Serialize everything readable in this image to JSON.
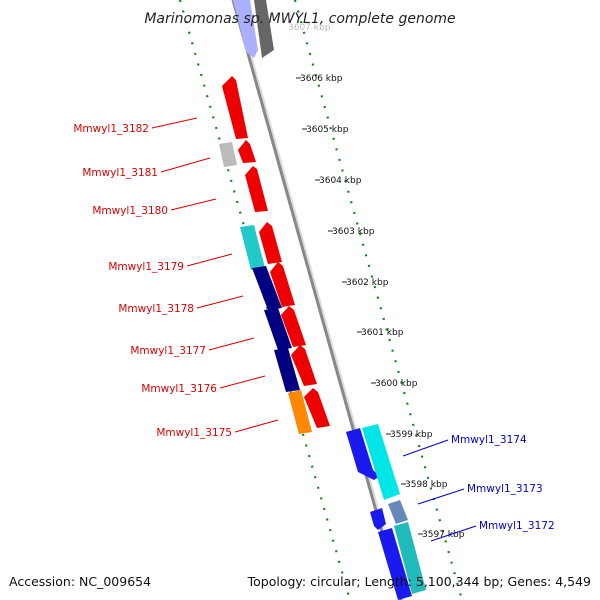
{
  "title": "Marinomonas sp. MWYL1, complete genome",
  "footer": {
    "accession": "Accession: NC_009654",
    "topology": "Topology: circular; Length: 5,100,344 bp; Genes: 4,549"
  },
  "ticks": [
    "3606 kbp",
    "3605 kbp",
    "3604 kbp",
    "3603 kbp",
    "3602 kbp",
    "3601 kbp",
    "3600 kbp",
    "3599 kbp",
    "3598 kbp",
    "3597 kbp"
  ],
  "genes_left": [
    "Mmwyl1_3182",
    "Mmwyl1_3181",
    "Mmwyl1_3180",
    "Mmwyl1_3179",
    "Mmwyl1_3178",
    "Mmwyl1_3177",
    "Mmwyl1_3176",
    "Mmwyl1_3175"
  ],
  "genes_right": [
    "Mmwyl1_3174",
    "Mmwyl1_3173",
    "Mmwyl1_3172"
  ],
  "colors": {
    "left_labels": "#dd0000",
    "right_labels": "#0000cc",
    "dots": "#118811",
    "backbone": "#888888",
    "red": "#ee0000",
    "navy": "#000080",
    "blue": "#1a1aee",
    "cyan": "#00e5e5",
    "teal": "#22bbbb",
    "gray": "#bbbbbb",
    "orange": "#ff8800"
  }
}
